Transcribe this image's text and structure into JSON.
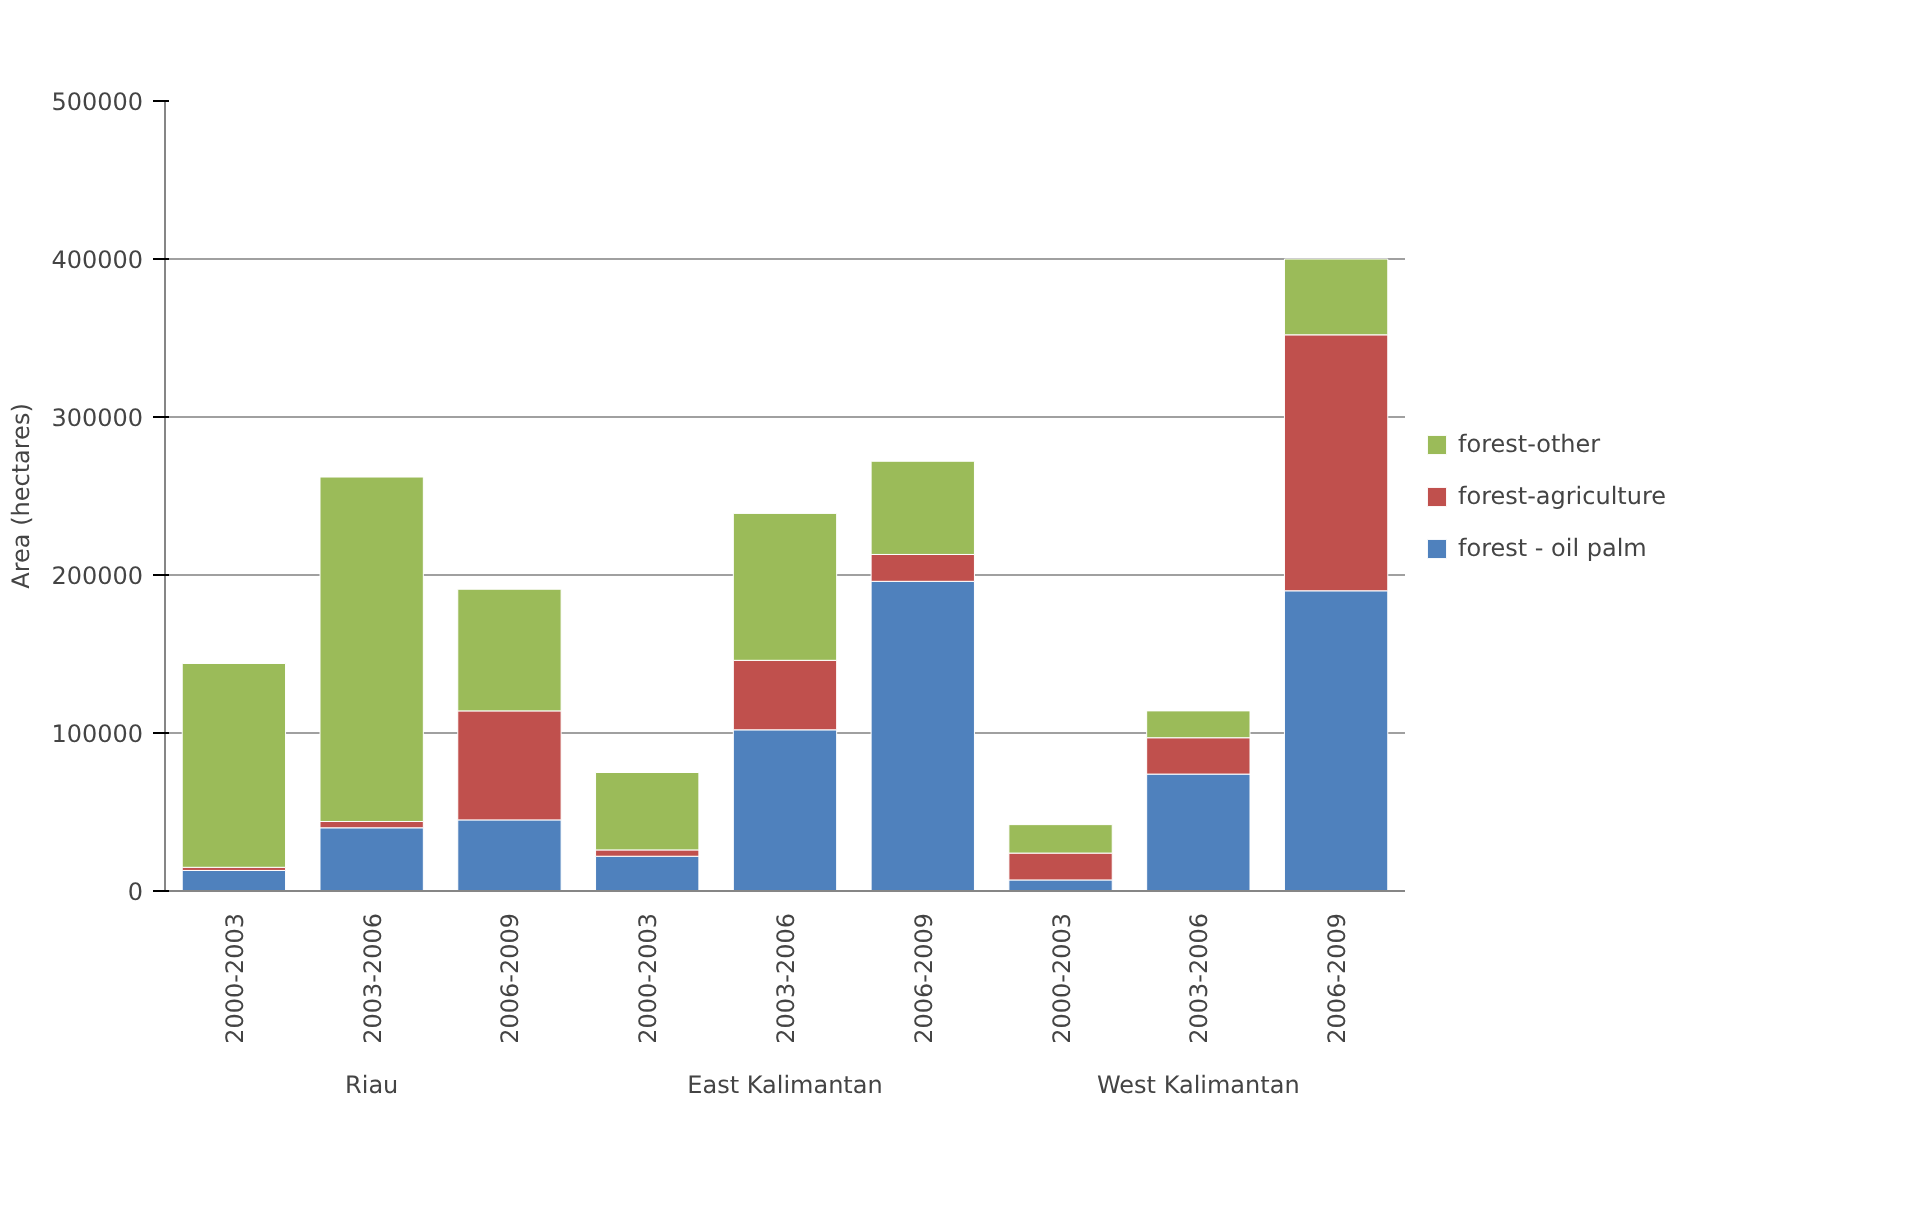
{
  "chart_data": {
    "type": "bar",
    "stacked": true,
    "ylabel": "Area (hectares)",
    "categories": [
      "2000-2003",
      "2003-2006",
      "2006-2009",
      "2000-2003",
      "2003-2006",
      "2006-2009",
      "2000-2003",
      "2003-2006",
      "2006-2009"
    ],
    "annotations": [
      "Riau",
      "East Kalimantan",
      "West Kalimantan"
    ],
    "series": [
      {
        "name": "forest - oil palm",
        "color": "#4f81bd",
        "values": [
          13000,
          40000,
          45000,
          22000,
          102000,
          196000,
          7000,
          74000,
          190000
        ]
      },
      {
        "name": "forest-agriculture",
        "color": "#c0504d",
        "values": [
          2000,
          4000,
          69000,
          4000,
          44000,
          17000,
          17000,
          23000,
          162000
        ]
      },
      {
        "name": "forest-other",
        "color": "#9bbb59",
        "values": [
          129000,
          218000,
          77000,
          49000,
          93000,
          59000,
          18000,
          17000,
          48000
        ]
      }
    ],
    "ylim": [
      0,
      500000
    ],
    "yticks": [
      0,
      100000,
      200000,
      300000,
      400000,
      500000
    ],
    "grid": "y",
    "legend": "right"
  }
}
